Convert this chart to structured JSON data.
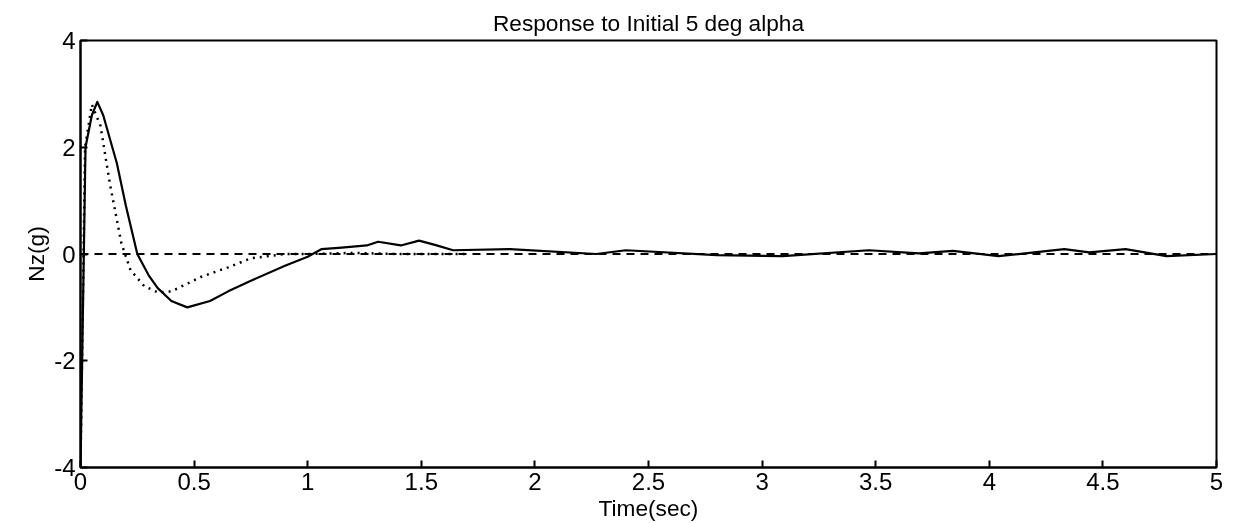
{
  "chart_data": {
    "type": "line",
    "title": "Response to Initial 5 deg alpha",
    "xlabel": "Time(sec)",
    "ylabel": "Nz(g)",
    "xlim": [
      0,
      5
    ],
    "ylim": [
      -4,
      4
    ],
    "xticks": [
      0,
      0.5,
      1,
      1.5,
      2,
      2.5,
      3,
      3.5,
      4,
      4.5,
      5
    ],
    "yticks": [
      -4,
      -2,
      0,
      2,
      4
    ],
    "grid": false,
    "series": [
      {
        "color": "#000000",
        "line_style": "solid",
        "x": [
          0,
          0.022,
          0.05,
          0.074,
          0.1,
          0.16,
          0.2,
          0.25,
          0.3,
          0.34,
          0.4,
          0.47,
          0.57,
          0.65,
          0.75,
          0.9,
          1.0,
          1.06,
          1.15,
          1.26,
          1.31,
          1.41,
          1.49,
          1.56,
          1.64,
          1.89,
          2.27,
          2.4,
          2.8,
          3.09,
          3.47,
          3.69,
          3.84,
          4.04,
          4.33,
          4.44,
          4.6,
          4.78,
          5
        ],
        "values": [
          -4,
          2.0,
          2.6,
          2.85,
          2.6,
          1.7,
          0.9,
          0.0,
          -0.4,
          -0.64,
          -0.88,
          -1.0,
          -0.88,
          -0.7,
          -0.5,
          -0.22,
          -0.05,
          0.09,
          0.12,
          0.16,
          0.23,
          0.16,
          0.25,
          0.17,
          0.07,
          0.09,
          0.0,
          0.07,
          -0.02,
          -0.04,
          0.07,
          0.01,
          0.06,
          -0.04,
          0.09,
          0.03,
          0.09,
          -0.04,
          0.0
        ]
      },
      {
        "color": "#000000",
        "line_style": "dotted",
        "x": [
          0,
          0.02,
          0.05,
          0.088,
          0.13,
          0.18,
          0.22,
          0.28,
          0.34,
          0.4,
          0.53,
          0.65,
          0.75,
          0.9,
          1.0,
          1.2,
          1.4,
          1.7
        ],
        "values": [
          -4,
          2.0,
          2.8,
          2.4,
          1.3,
          0.2,
          -0.3,
          -0.6,
          -0.72,
          -0.7,
          -0.43,
          -0.25,
          -0.08,
          0.0,
          0.0,
          0.02,
          0.0,
          0.0
        ]
      }
    ],
    "ref_lines": [
      {
        "axis": "y",
        "value": 0,
        "color": "#000000",
        "line_style": "dashed"
      }
    ]
  }
}
